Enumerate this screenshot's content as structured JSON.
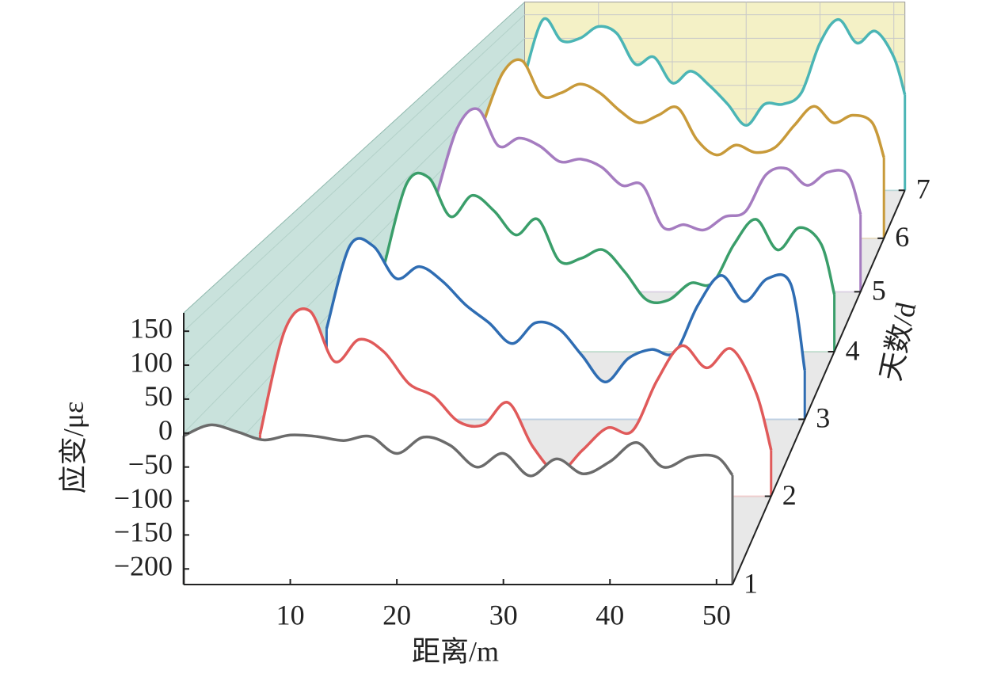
{
  "chart_data": {
    "type": "waterfall",
    "x_label": "距离/m",
    "y_label": "应变/με",
    "z_label": "天数/d",
    "xlim": [
      0,
      51.5
    ],
    "ylim": [
      -223,
      177
    ],
    "zlim": [
      1,
      7
    ],
    "xticks": [
      10,
      20,
      30,
      40,
      50
    ],
    "yticks": [
      150,
      100,
      50,
      0,
      {
        "value": -50,
        "label": "−50"
      },
      {
        "value": -100,
        "label": "−100"
      },
      {
        "value": -150,
        "label": "−150"
      },
      {
        "value": -200,
        "label": "−200"
      }
    ],
    "zticks": [
      1,
      2,
      3,
      4,
      5,
      6,
      7
    ],
    "grid": true,
    "x": [
      0,
      2.5,
      5,
      7.5,
      10,
      12.5,
      15,
      17.5,
      20,
      22.5,
      25,
      27.5,
      30,
      32.5,
      35,
      37.5,
      40,
      42.5,
      45,
      47.5,
      50,
      51.5
    ],
    "series": [
      {
        "z": 1,
        "color": "#6b6b6b",
        "values": [
          -4,
          12,
          2,
          -10,
          -3,
          -5,
          -11,
          -5,
          -30,
          -6,
          -18,
          -50,
          -30,
          -63,
          -38,
          -60,
          -42,
          -14,
          -50,
          -35,
          -35,
          -62
        ]
      },
      {
        "z": 2,
        "color": "#e05a5a",
        "values": [
          -125,
          40,
          70,
          -10,
          25,
          5,
          -45,
          -65,
          -105,
          -110,
          -75,
          -145,
          -185,
          -150,
          -115,
          -120,
          -40,
          15,
          -20,
          10,
          -60,
          -150
        ]
      },
      {
        "z": 3,
        "color": "#2f6db3",
        "values": [
          -70,
          70,
          70,
          15,
          35,
          10,
          -30,
          -60,
          -95,
          -60,
          -70,
          -115,
          -160,
          -120,
          -105,
          -110,
          -30,
          20,
          -24,
          15,
          5,
          -140
        ]
      },
      {
        "z": 4,
        "color": "#3a9e6a",
        "values": [
          -61,
          80,
          90,
          20,
          58,
          30,
          -13,
          15,
          -60,
          -55,
          -40,
          -80,
          -130,
          -130,
          -100,
          -100,
          -30,
          15,
          -40,
          0,
          -30,
          -120
        ]
      },
      {
        "z": 5,
        "color": "#a57cc0",
        "values": [
          -37,
          90,
          125,
          55,
          70,
          55,
          25,
          30,
          15,
          -20,
          -20,
          -100,
          -95,
          -105,
          -80,
          -70,
          0,
          12,
          -20,
          5,
          0,
          -75
        ]
      },
      {
        "z": 6,
        "color": "#c89a3a",
        "values": [
          9,
          110,
          135,
          65,
          70,
          88,
          70,
          35,
          10,
          25,
          40,
          -25,
          -55,
          -35,
          -50,
          -40,
          5,
          43,
          10,
          25,
          10,
          -60
        ]
      },
      {
        "z": 7,
        "color": "#4bb5b5",
        "values": [
          20,
          140,
          95,
          100,
          125,
          110,
          45,
          60,
          5,
          30,
          0,
          -40,
          -85,
          -40,
          -40,
          -15,
          90,
          140,
          90,
          115,
          60,
          -20
        ]
      }
    ]
  }
}
